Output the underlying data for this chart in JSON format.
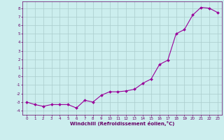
{
  "x": [
    0,
    1,
    2,
    3,
    4,
    5,
    6,
    7,
    8,
    9,
    10,
    11,
    12,
    13,
    14,
    15,
    16,
    17,
    18,
    19,
    20,
    21,
    22,
    23
  ],
  "y": [
    -3.0,
    -3.3,
    -3.5,
    -3.3,
    -3.3,
    -3.3,
    -3.7,
    -2.8,
    -3.0,
    -2.2,
    -1.8,
    -1.8,
    -1.7,
    -1.5,
    -0.8,
    -0.3,
    1.4,
    1.9,
    5.0,
    5.5,
    7.2,
    8.1,
    8.0,
    7.5
  ],
  "line_color": "#990099",
  "marker": "D",
  "marker_size": 2,
  "bg_color": "#cceeee",
  "grid_color": "#aacccc",
  "xlabel": "Windchill (Refroidissement éolien,°C)",
  "xlabel_color": "#660066",
  "tick_color": "#660066",
  "xlim": [
    -0.5,
    23.5
  ],
  "ylim": [
    -4.5,
    8.8
  ],
  "yticks": [
    -4,
    -3,
    -2,
    -1,
    0,
    1,
    2,
    3,
    4,
    5,
    6,
    7,
    8
  ],
  "xticks": [
    0,
    1,
    2,
    3,
    4,
    5,
    6,
    7,
    8,
    9,
    10,
    11,
    12,
    13,
    14,
    15,
    16,
    17,
    18,
    19,
    20,
    21,
    22,
    23
  ]
}
